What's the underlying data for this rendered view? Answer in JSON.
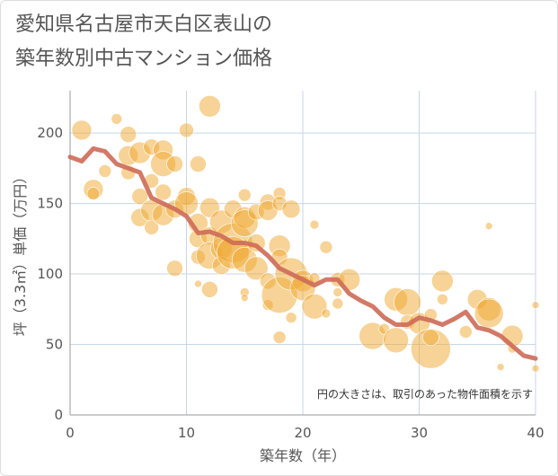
{
  "title": {
    "line1": "愛知県名古屋市天白区表山の",
    "line2": "築年数別中古マンション価格"
  },
  "colors": {
    "bubble": "#f0a830",
    "line": "#cd6a58",
    "grid": "#c8d6e6",
    "axis_text": "#555555"
  },
  "chart_data": {
    "type": "scatter",
    "title": "愛知県名古屋市天白区表山の築年数別中古マンション価格",
    "xlabel": "築年数（年）",
    "ylabel": "坪（3.3㎡）単価（万円）",
    "xlim": [
      0,
      40
    ],
    "ylim": [
      0,
      230
    ],
    "xticks": [
      "0",
      "10",
      "20",
      "30",
      "40"
    ],
    "yticks": [
      "0",
      "50",
      "100",
      "150",
      "200"
    ],
    "grid": true,
    "annotation": "円の大きさは、取引のあった物件面積を示す",
    "series": [
      {
        "type": "line",
        "x": [
          0,
          1,
          2,
          3,
          4,
          5,
          6,
          7,
          8,
          9,
          10,
          11,
          12,
          13,
          14,
          15,
          16,
          17,
          18,
          19,
          20,
          21,
          22,
          23,
          24,
          25,
          26,
          27,
          28,
          29,
          30,
          31,
          32,
          33,
          34,
          35,
          36,
          37,
          38,
          39,
          40
        ],
        "values": [
          183,
          180,
          189,
          187,
          178,
          175,
          172,
          154,
          150,
          146,
          141,
          129,
          130,
          127,
          122,
          122,
          120,
          113,
          104,
          100,
          96,
          92,
          96,
          96,
          86,
          81,
          77,
          69,
          64,
          64,
          69,
          67,
          64,
          68,
          73,
          62,
          60,
          56,
          49,
          42,
          40
        ]
      },
      {
        "type": "bubble",
        "points": [
          {
            "x": 1,
            "y": 202,
            "s": 11
          },
          {
            "x": 2,
            "y": 160,
            "s": 11
          },
          {
            "x": 2,
            "y": 157,
            "s": 7
          },
          {
            "x": 3,
            "y": 173,
            "s": 7
          },
          {
            "x": 4,
            "y": 210,
            "s": 6
          },
          {
            "x": 5,
            "y": 199,
            "s": 9
          },
          {
            "x": 5,
            "y": 184,
            "s": 11
          },
          {
            "x": 5,
            "y": 172,
            "s": 8
          },
          {
            "x": 6,
            "y": 186,
            "s": 12
          },
          {
            "x": 6,
            "y": 155,
            "s": 9
          },
          {
            "x": 6,
            "y": 140,
            "s": 10
          },
          {
            "x": 7,
            "y": 190,
            "s": 9
          },
          {
            "x": 7,
            "y": 166,
            "s": 8
          },
          {
            "x": 7,
            "y": 145,
            "s": 12
          },
          {
            "x": 7,
            "y": 133,
            "s": 8
          },
          {
            "x": 8,
            "y": 188,
            "s": 11
          },
          {
            "x": 8,
            "y": 178,
            "s": 14
          },
          {
            "x": 8,
            "y": 158,
            "s": 9
          },
          {
            "x": 8,
            "y": 142,
            "s": 12
          },
          {
            "x": 9,
            "y": 178,
            "s": 9
          },
          {
            "x": 9,
            "y": 146,
            "s": 10
          },
          {
            "x": 9,
            "y": 104,
            "s": 9
          },
          {
            "x": 10,
            "y": 202,
            "s": 8
          },
          {
            "x": 10,
            "y": 155,
            "s": 10
          },
          {
            "x": 10,
            "y": 150,
            "s": 13
          },
          {
            "x": 11,
            "y": 178,
            "s": 9
          },
          {
            "x": 11,
            "y": 136,
            "s": 11
          },
          {
            "x": 11,
            "y": 125,
            "s": 10
          },
          {
            "x": 11,
            "y": 112,
            "s": 8
          },
          {
            "x": 11,
            "y": 93,
            "s": 4
          },
          {
            "x": 12,
            "y": 219,
            "s": 12
          },
          {
            "x": 12,
            "y": 147,
            "s": 11
          },
          {
            "x": 12,
            "y": 127,
            "s": 10
          },
          {
            "x": 12,
            "y": 113,
            "s": 15
          },
          {
            "x": 12,
            "y": 89,
            "s": 9
          },
          {
            "x": 13,
            "y": 137,
            "s": 13
          },
          {
            "x": 13,
            "y": 118,
            "s": 12
          },
          {
            "x": 13,
            "y": 106,
            "s": 10
          },
          {
            "x": 14,
            "y": 146,
            "s": 10
          },
          {
            "x": 14,
            "y": 122,
            "s": 22
          },
          {
            "x": 14,
            "y": 115,
            "s": 18
          },
          {
            "x": 15,
            "y": 156,
            "s": 7
          },
          {
            "x": 15,
            "y": 140,
            "s": 12
          },
          {
            "x": 15,
            "y": 136,
            "s": 15
          },
          {
            "x": 15,
            "y": 110,
            "s": 14
          },
          {
            "x": 15,
            "y": 87,
            "s": 5
          },
          {
            "x": 15,
            "y": 83,
            "s": 4
          },
          {
            "x": 16,
            "y": 144,
            "s": 9
          },
          {
            "x": 16,
            "y": 122,
            "s": 10
          },
          {
            "x": 16,
            "y": 104,
            "s": 13
          },
          {
            "x": 17,
            "y": 151,
            "s": 9
          },
          {
            "x": 17,
            "y": 145,
            "s": 11
          },
          {
            "x": 17,
            "y": 95,
            "s": 9
          },
          {
            "x": 17,
            "y": 78,
            "s": 6
          },
          {
            "x": 18,
            "y": 157,
            "s": 7
          },
          {
            "x": 18,
            "y": 150,
            "s": 8
          },
          {
            "x": 18,
            "y": 120,
            "s": 12
          },
          {
            "x": 18,
            "y": 112,
            "s": 9
          },
          {
            "x": 18,
            "y": 85,
            "s": 20
          },
          {
            "x": 18,
            "y": 55,
            "s": 7
          },
          {
            "x": 19,
            "y": 146,
            "s": 10
          },
          {
            "x": 19,
            "y": 100,
            "s": 18
          },
          {
            "x": 19,
            "y": 69,
            "s": 6
          },
          {
            "x": 20,
            "y": 95,
            "s": 12
          },
          {
            "x": 20,
            "y": 90,
            "s": 14
          },
          {
            "x": 21,
            "y": 135,
            "s": 5
          },
          {
            "x": 21,
            "y": 77,
            "s": 14
          },
          {
            "x": 21,
            "y": 97,
            "s": 6
          },
          {
            "x": 22,
            "y": 119,
            "s": 7
          },
          {
            "x": 22,
            "y": 72,
            "s": 5
          },
          {
            "x": 23,
            "y": 96,
            "s": 8
          },
          {
            "x": 23,
            "y": 87,
            "s": 5
          },
          {
            "x": 23,
            "y": 79,
            "s": 6
          },
          {
            "x": 24,
            "y": 96,
            "s": 12
          },
          {
            "x": 26,
            "y": 56,
            "s": 15
          },
          {
            "x": 27,
            "y": 61,
            "s": 6
          },
          {
            "x": 28,
            "y": 82,
            "s": 13
          },
          {
            "x": 28,
            "y": 53,
            "s": 14
          },
          {
            "x": 29,
            "y": 80,
            "s": 15
          },
          {
            "x": 29,
            "y": 66,
            "s": 8
          },
          {
            "x": 30,
            "y": 65,
            "s": 12
          },
          {
            "x": 31,
            "y": 71,
            "s": 7
          },
          {
            "x": 31,
            "y": 47,
            "s": 22
          },
          {
            "x": 31,
            "y": 55,
            "s": 9
          },
          {
            "x": 32,
            "y": 95,
            "s": 12
          },
          {
            "x": 32,
            "y": 82,
            "s": 6
          },
          {
            "x": 34,
            "y": 59,
            "s": 7
          },
          {
            "x": 35,
            "y": 82,
            "s": 11
          },
          {
            "x": 36,
            "y": 134,
            "s": 4
          },
          {
            "x": 36,
            "y": 75,
            "s": 13
          },
          {
            "x": 36,
            "y": 72,
            "s": 16
          },
          {
            "x": 37,
            "y": 34,
            "s": 4
          },
          {
            "x": 38,
            "y": 56,
            "s": 12
          },
          {
            "x": 38,
            "y": 47,
            "s": 5
          },
          {
            "x": 40,
            "y": 78,
            "s": 4
          },
          {
            "x": 40,
            "y": 33,
            "s": 4
          }
        ]
      }
    ]
  }
}
